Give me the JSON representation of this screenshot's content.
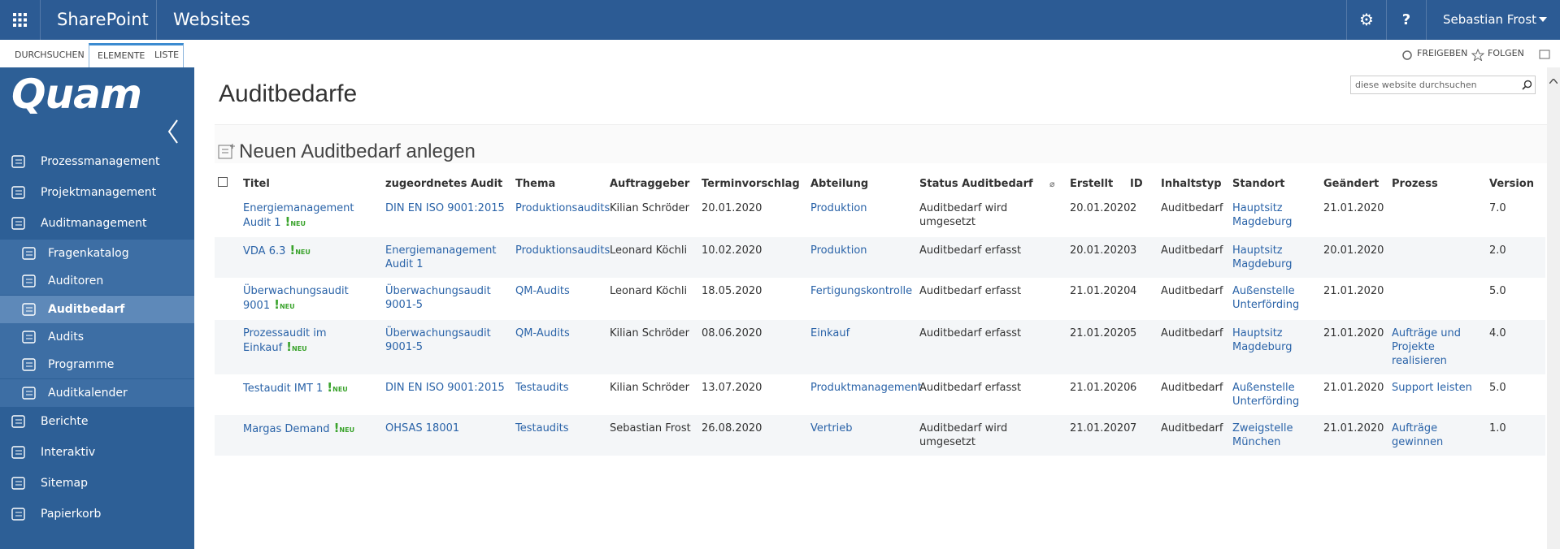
{
  "header": {
    "app_name": "SharePoint",
    "site_name": "Websites",
    "user": "Sebastian Frost",
    "settings_icon": "⚙",
    "help_icon": "?"
  },
  "ribbon": {
    "tabs": [
      "DURCHSUCHEN",
      "ELEMENTE",
      "LISTE"
    ],
    "actions": [
      "FREIGEBEN",
      "FOLGEN"
    ]
  },
  "sidebar": {
    "logo": "Quam",
    "nav": [
      {
        "label": "Prozessmanagement",
        "level": 1
      },
      {
        "label": "Projektmanagement",
        "level": 1
      },
      {
        "label": "Auditmanagement",
        "level": 1
      },
      {
        "label": "Fragenkatalog",
        "level": 2
      },
      {
        "label": "Auditoren",
        "level": 2
      },
      {
        "label": "Auditbedarf",
        "level": 2,
        "selected": true
      },
      {
        "label": "Audits",
        "level": 2
      },
      {
        "label": "Programme",
        "level": 2
      },
      {
        "label": "Auditkalender",
        "level": 2
      },
      {
        "label": "Berichte",
        "level": 1
      },
      {
        "label": "Interaktiv",
        "level": 1
      },
      {
        "label": "Sitemap",
        "level": 1
      },
      {
        "label": "Papierkorb",
        "level": 1
      }
    ]
  },
  "page": {
    "title": "Auditbedarfe",
    "search_placeholder": "diese website durchsuchen",
    "new_item": "Neuen Auditbedarf anlegen"
  },
  "table": {
    "columns": [
      "Titel",
      "zugeordnetes Audit",
      "Thema",
      "Auftraggeber",
      "Terminvorschlag",
      "Abteilung",
      "Status Auditbedarf",
      "Erstellt",
      "ID",
      "Inhaltstyp",
      "Standort",
      "Geändert",
      "Prozess",
      "Version"
    ],
    "new_marker": {
      "icon": "!",
      "label": "NEU"
    },
    "rows": [
      [
        "Energiemanagement Audit 1",
        "DIN EN ISO 9001:2015",
        "Produktionsaudits",
        "Kilian Schröder",
        "20.01.2020",
        "Produktion",
        "Auditbedarf wird umgesetzt",
        "20.01.2020",
        2,
        "Auditbedarf",
        "Hauptsitz Magdeburg",
        "21.01.2020",
        null,
        "7.0"
      ],
      [
        "VDA 6.3",
        "Energiemanagement Audit 1",
        "Produktionsaudits",
        "Leonard Köchli",
        "10.02.2020",
        "Produktion",
        "Auditbedarf erfasst",
        "20.01.2020",
        3,
        "Auditbedarf",
        "Hauptsitz Magdeburg",
        "20.01.2020",
        null,
        "2.0"
      ],
      [
        "Überwachungsaudit 9001",
        "Überwachungsaudit 9001-5",
        "QM-Audits",
        "Leonard Köchli",
        "18.05.2020",
        "Fertigungskontrolle",
        "Auditbedarf erfasst",
        "21.01.2020",
        4,
        "Auditbedarf",
        "Außenstelle Unterförding",
        "21.01.2020",
        null,
        "5.0"
      ],
      [
        "Prozessaudit im Einkauf",
        "Überwachungsaudit 9001-5",
        "QM-Audits",
        "Kilian Schröder",
        "08.06.2020",
        "Einkauf",
        "Auditbedarf erfasst",
        "21.01.2020",
        5,
        "Auditbedarf",
        "Hauptsitz Magdeburg",
        "21.01.2020",
        "Aufträge und Projekte realisieren",
        "4.0"
      ],
      [
        "Testaudit IMT 1",
        "DIN EN ISO 9001:2015",
        "Testaudits",
        "Kilian Schröder",
        "13.07.2020",
        "Produktmanagement",
        "Auditbedarf erfasst",
        "21.01.2020",
        6,
        "Auditbedarf",
        "Außenstelle Unterförding",
        "21.01.2020",
        "Support leisten",
        "5.0"
      ],
      [
        "Margas Demand",
        "OHSAS 18001",
        "Testaudits",
        "Sebastian Frost",
        "26.08.2020",
        "Vertrieb",
        "Auditbedarf wird umgesetzt",
        "21.01.2020",
        7,
        "Auditbedarf",
        "Zweigstelle München",
        "21.01.2020",
        "Aufträge gewinnen",
        "1.0"
      ]
    ]
  }
}
